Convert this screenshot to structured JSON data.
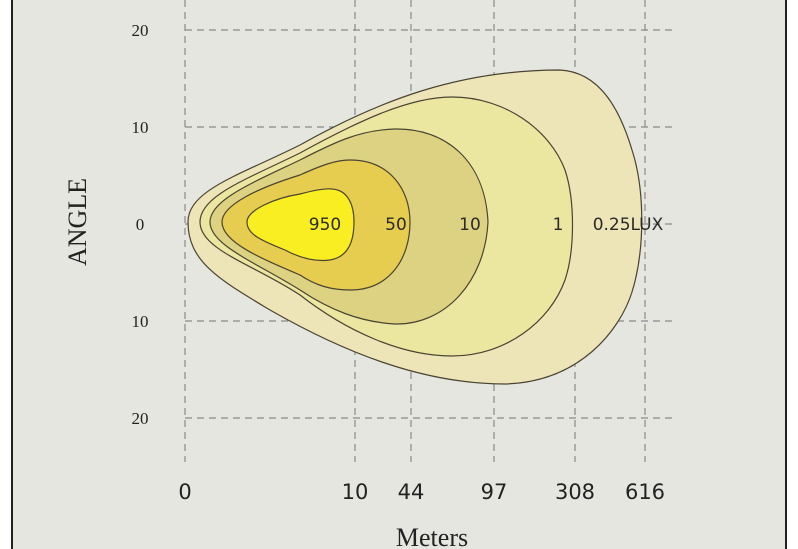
{
  "chart_data": {
    "type": "isolux-contour",
    "title": "",
    "xlabel": "Meters",
    "ylabel": "ANGLE",
    "x_ticks": [
      "0",
      "10",
      "44",
      "97",
      "308",
      "616"
    ],
    "y_ticks": [
      "20",
      "10",
      "0",
      "10",
      "20"
    ],
    "y_tick_values": [
      20,
      10,
      0,
      -10,
      -20
    ],
    "grid": true,
    "contours": [
      {
        "label": "0.25LUX",
        "lux": 0.25,
        "reach_tick": "616",
        "color": "#EDE5B8"
      },
      {
        "label": "1",
        "lux": 1,
        "reach_tick": "308",
        "color": "#EBE7A1"
      },
      {
        "label": "10",
        "lux": 10,
        "reach_tick": "97",
        "color": "#DDD282"
      },
      {
        "label": "50",
        "lux": 50,
        "reach_tick": "44",
        "color": "#E6CC4F"
      },
      {
        "label": "950",
        "lux": 950,
        "reach_tick": "10",
        "color": "#F8EE22"
      }
    ]
  },
  "colors": {
    "plot_background": "#E5E6E0",
    "border": "#222222",
    "grid": "#8a8a8a",
    "contour_stroke": "#4a4432"
  }
}
